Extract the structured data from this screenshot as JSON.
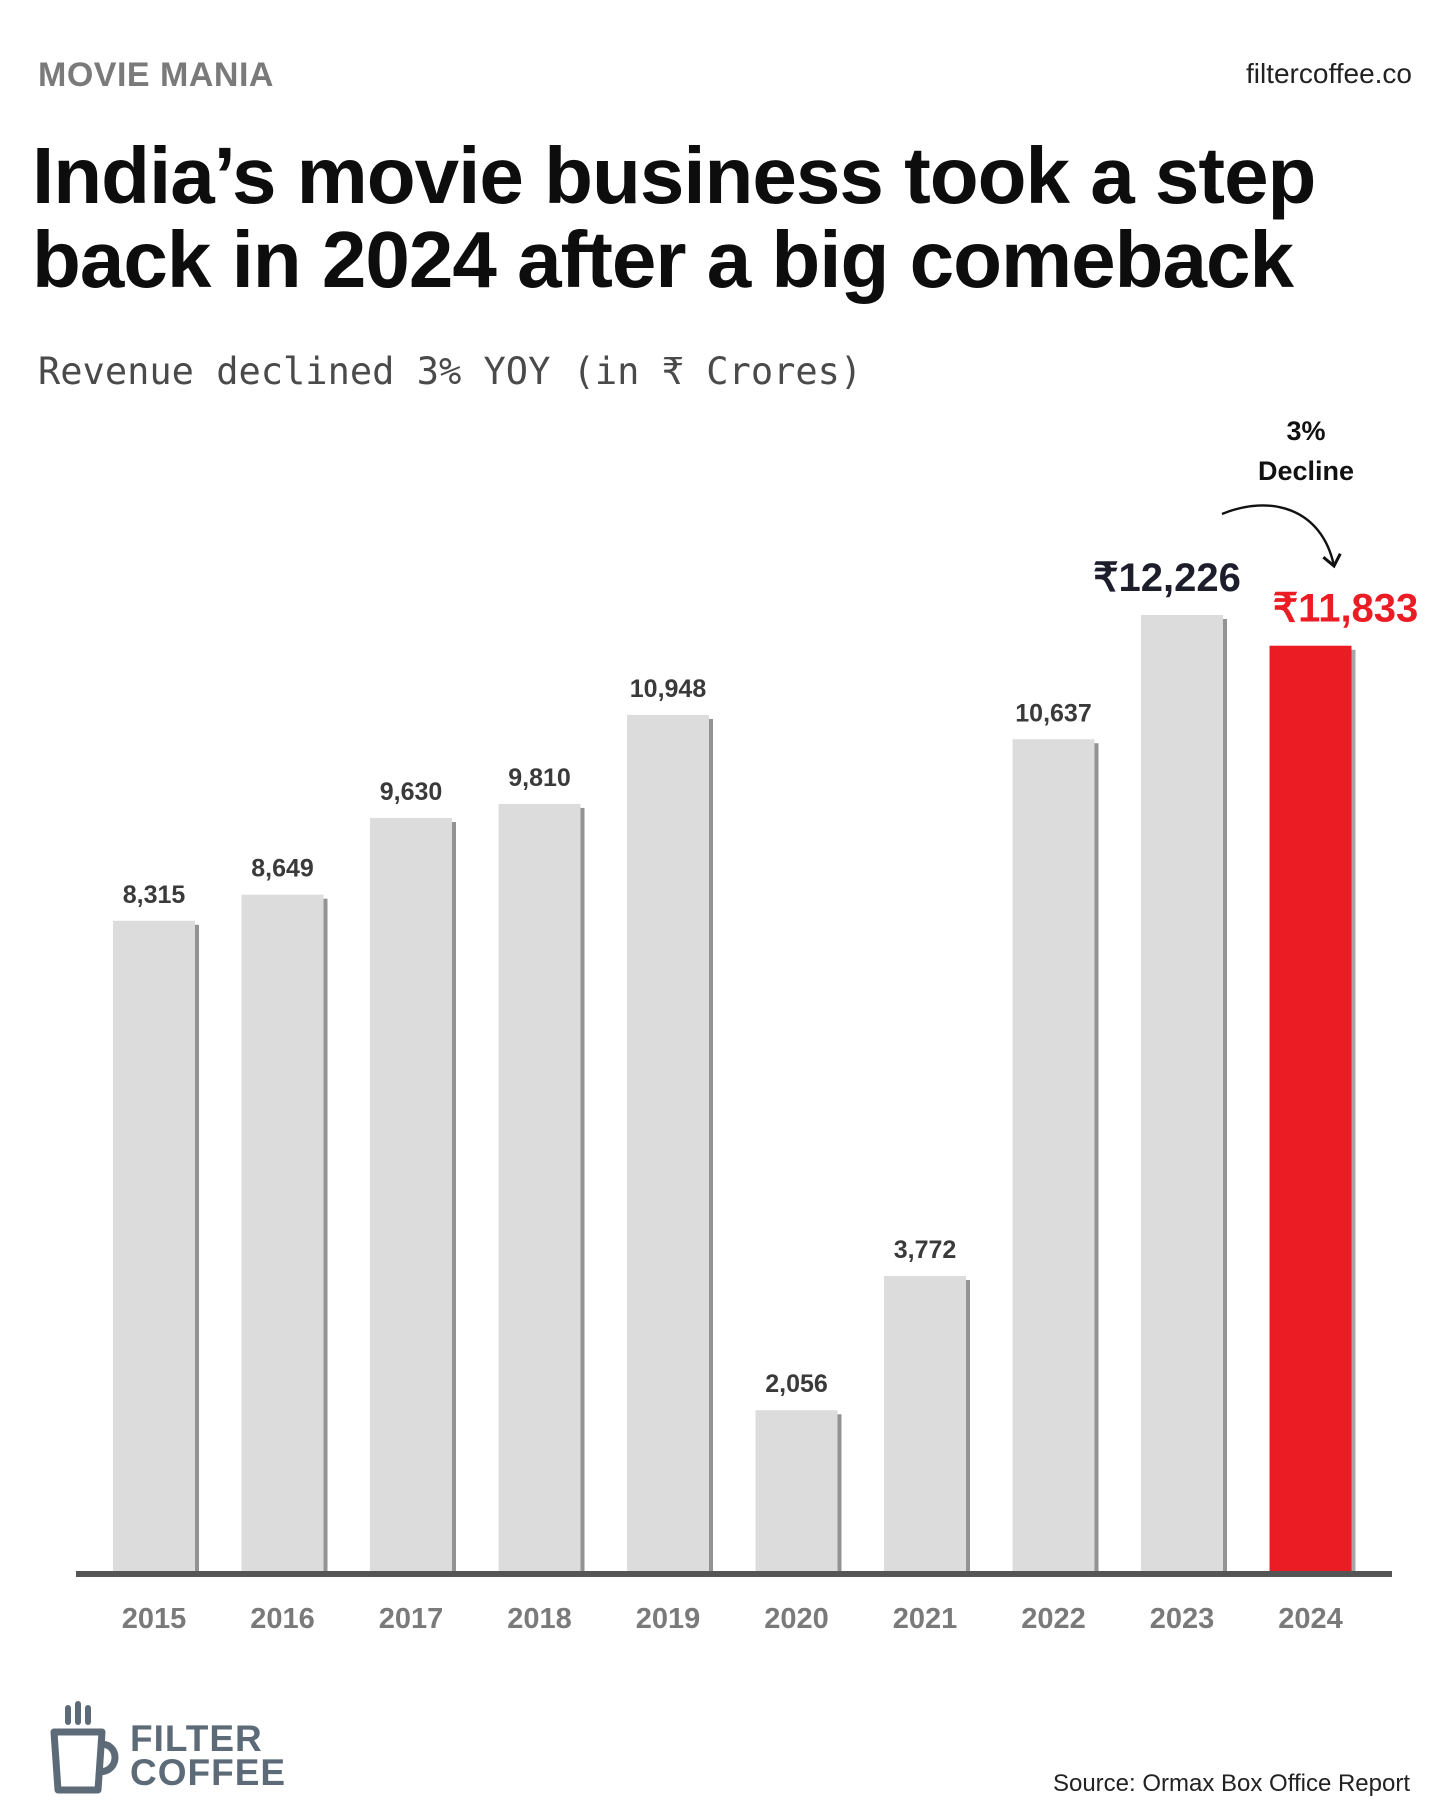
{
  "header": {
    "section": "MOVIE MANIA",
    "site": "filtercoffee.co"
  },
  "title": "India’s movie business took a step back in 2024 after a big comeback",
  "subtitle": "Revenue declined 3% YOY (in ₹ Crores)",
  "colors": {
    "bar": "#dcdcdc",
    "highlight": "#ec1c24",
    "axis": "#555555",
    "tick": "#7a7a7a",
    "label": "#3a3a3a",
    "logo": "#5d6b78"
  },
  "chart_data": {
    "type": "bar",
    "categories": [
      "2015",
      "2016",
      "2017",
      "2018",
      "2019",
      "2020",
      "2021",
      "2022",
      "2023",
      "2024"
    ],
    "values": [
      8315,
      8649,
      9630,
      9810,
      10948,
      2056,
      3772,
      10637,
      12226,
      11833
    ],
    "data_labels": [
      "8,315",
      "8,649",
      "9,630",
      "9,810",
      "10,948",
      "2,056",
      "3,772",
      "10,637",
      "₹12,226",
      "₹11,833"
    ],
    "highlight_category": "2024",
    "ylim": [
      0,
      12226
    ],
    "grid": false,
    "legend": "none",
    "annotation": {
      "line1": "3%",
      "line2": "Decline",
      "from": "2023",
      "to": "2024"
    }
  },
  "footer": {
    "logo": {
      "icon": "coffee-cup-icon",
      "line1": "FILTER",
      "line2": "COFFEE"
    },
    "source": "Source: Ormax Box Office Report"
  }
}
